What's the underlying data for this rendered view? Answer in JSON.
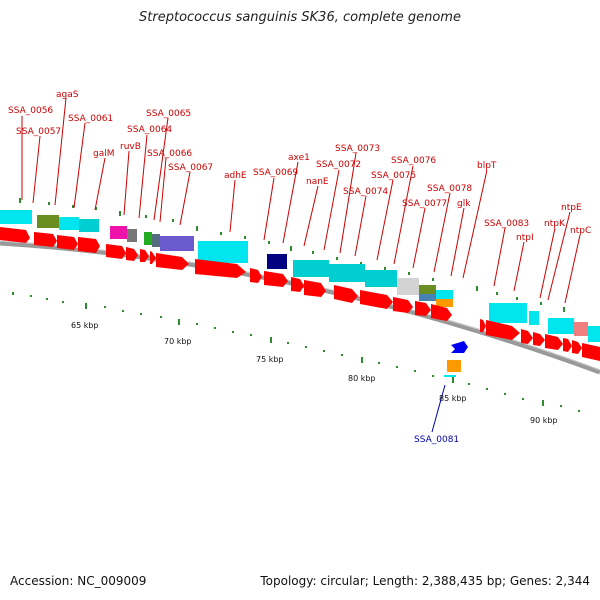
{
  "title": "Streptococcus sanguinis SK36, complete genome",
  "accession": "Accession: NC_009009",
  "summary": "Topology: circular; Length: 2,388,435 bp; Genes: 2,344",
  "colors": {
    "label": "#cc0000",
    "label_alt": "#0000aa",
    "backbone": "#999999",
    "tick": "#2e8b2e",
    "gene_red": "#ff0000",
    "gene_cyan": "#00e5ee"
  },
  "scale_labels": [
    "65 kbp",
    "70 kbp",
    "75 kbp",
    "80 kbp",
    "85 kbp",
    "90 kbp"
  ],
  "gene_labels": [
    {
      "text": "SSA_0056",
      "color": "red"
    },
    {
      "text": "SSA_0057",
      "color": "red"
    },
    {
      "text": "agaS",
      "color": "red"
    },
    {
      "text": "SSA_0061",
      "color": "red"
    },
    {
      "text": "galM",
      "color": "red"
    },
    {
      "text": "ruvB",
      "color": "red"
    },
    {
      "text": "SSA_0064",
      "color": "red"
    },
    {
      "text": "SSA_0065",
      "color": "red"
    },
    {
      "text": "SSA_0066",
      "color": "red"
    },
    {
      "text": "SSA_0067",
      "color": "red"
    },
    {
      "text": "adhE",
      "color": "red"
    },
    {
      "text": "SSA_0069",
      "color": "red"
    },
    {
      "text": "axe1",
      "color": "red"
    },
    {
      "text": "nanE",
      "color": "red"
    },
    {
      "text": "SSA_0072",
      "color": "red"
    },
    {
      "text": "SSA_0073",
      "color": "red"
    },
    {
      "text": "SSA_0074",
      "color": "red"
    },
    {
      "text": "SSA_0075",
      "color": "red"
    },
    {
      "text": "SSA_0076",
      "color": "red"
    },
    {
      "text": "SSA_0077",
      "color": "red"
    },
    {
      "text": "SSA_0078",
      "color": "red"
    },
    {
      "text": "glk",
      "color": "red"
    },
    {
      "text": "blpT",
      "color": "red"
    },
    {
      "text": "SSA_0083",
      "color": "red"
    },
    {
      "text": "ntpI",
      "color": "red"
    },
    {
      "text": "ntpK",
      "color": "red"
    },
    {
      "text": "ntpE",
      "color": "red"
    },
    {
      "text": "ntpC",
      "color": "red"
    },
    {
      "text": "SSA_0081",
      "color": "blue"
    }
  ]
}
